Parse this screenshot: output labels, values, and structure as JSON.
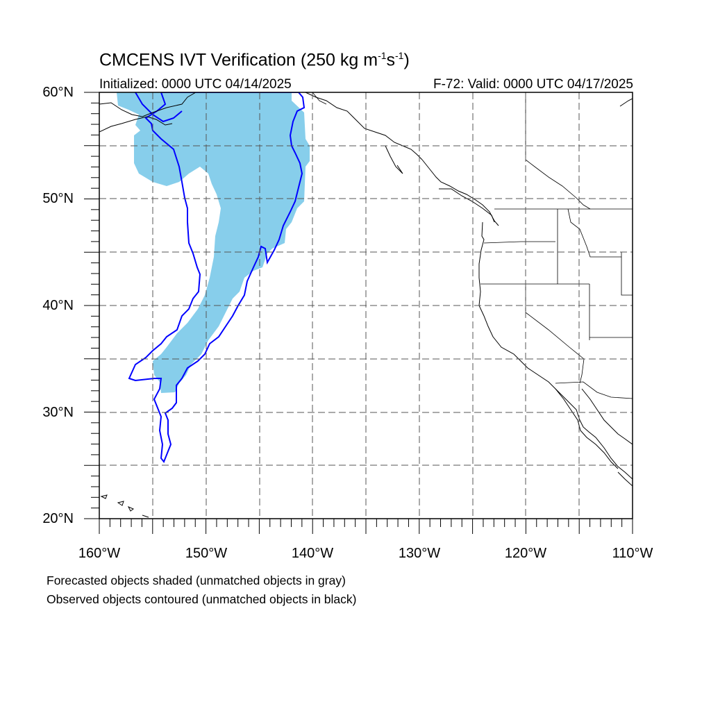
{
  "figure": {
    "title_main": "CMCENS IVT Verification (250 kg m",
    "title_sup1": "-1",
    "title_mid": "s",
    "title_sup2": "-1",
    "title_end": ")",
    "initialized": "Initialized: 0000 UTC 04/14/2025",
    "valid": "F-72: Valid: 0000 UTC 04/17/2025"
  },
  "axes": {
    "lat_labels": [
      "60°N",
      "50°N",
      "40°N",
      "30°N",
      "20°N"
    ],
    "lon_labels": [
      "160°W",
      "150°W",
      "140°W",
      "130°W",
      "120°W",
      "110°W"
    ]
  },
  "map": {
    "lon_range": [
      -160,
      -110
    ],
    "lat_range": [
      20,
      60
    ],
    "gridlines": "dashed every 5 degrees",
    "forecast_fill_color": "#87CEEB",
    "observed_contour_color": "#0000FF",
    "coastline_color": "#000000"
  },
  "legend": {
    "line1": "Forecasted objects shaded (unmatched objects in gray)",
    "line2": "Observed objects contoured (unmatched objects in black)"
  }
}
